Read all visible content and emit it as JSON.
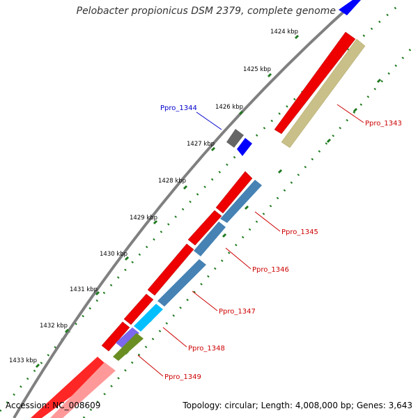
{
  "title": "Pelobacter propionicus DSM 2379, complete genome",
  "footer": {
    "accession": "Accession: NC_008609",
    "summary": "Topology: circular; Length: 4,008,000 bp; Genes: 3,643"
  },
  "ticks": [
    "1424 kbp",
    "1425 kbp",
    "1426 kbp",
    "1427 kbp",
    "1428 kbp",
    "1429 kbp",
    "1430 kbp",
    "1431 kbp",
    "1432 kbp",
    "1433 kbp"
  ],
  "genes": [
    {
      "label": "Ppro_1343",
      "color": "#cc0000"
    },
    {
      "label": "Ppro_1344",
      "color": "#0000cc"
    },
    {
      "label": "Ppro_1345",
      "color": "#cc0000"
    },
    {
      "label": "Ppro_1346",
      "color": "#cc0000"
    },
    {
      "label": "Ppro_1347",
      "color": "#cc0000"
    },
    {
      "label": "Ppro_1348",
      "color": "#cc0000"
    },
    {
      "label": "Ppro_1349",
      "color": "#cc0000"
    }
  ],
  "colors": {
    "backbone": "#808080",
    "cds": "#ff0000",
    "gene_block": "#c8c88a",
    "feature_blue": "#4682b4",
    "feature_cyan": "#00bfff",
    "feature_purple": "#7b68ee",
    "feature_olive": "#6b8e23",
    "tick_green": "#1f7a1f"
  }
}
